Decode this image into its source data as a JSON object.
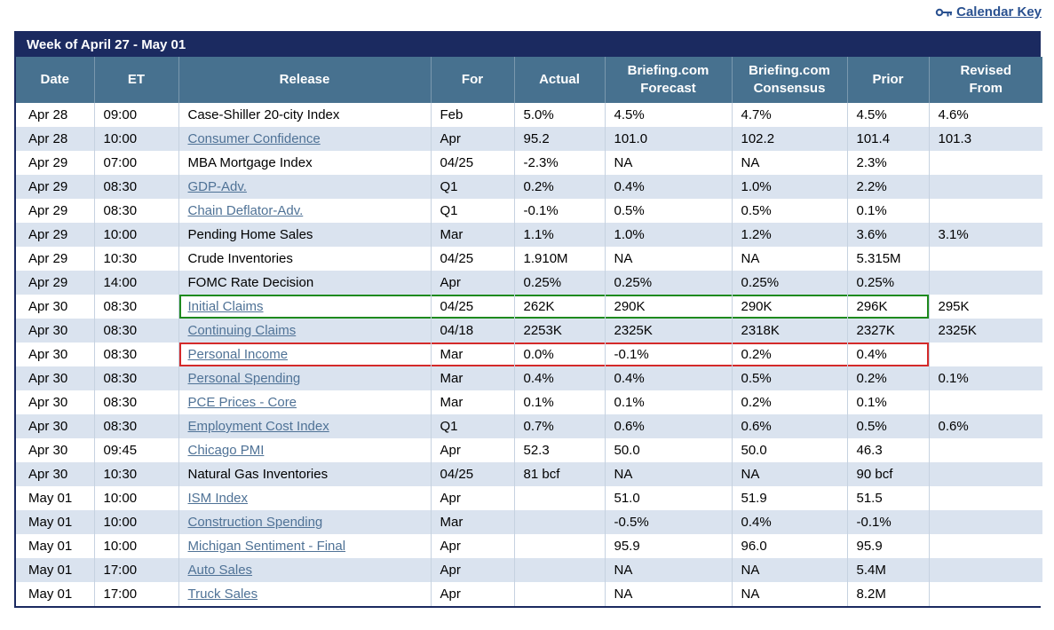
{
  "calendar_key": {
    "label": "Calendar Key"
  },
  "title": "Week of April 27 - May 01",
  "colors": {
    "navy": "#1b2a60",
    "header_blue": "#47718f",
    "zebra": "#dae3ef",
    "link": "#4f7296",
    "hl_green": "#1e8a1e",
    "hl_red": "#d42a2a"
  },
  "table": {
    "headers": [
      "Date",
      "ET",
      "Release",
      "For",
      "Actual",
      "Briefing.com\nForecast",
      "Briefing.com\nConsensus",
      "Prior",
      "Revised\nFrom"
    ],
    "rows": [
      {
        "date": "Apr 28",
        "et": "09:00",
        "release": "Case-Shiller 20-city Index",
        "link": false,
        "for": "Feb",
        "actual": "5.0%",
        "forecast": "4.5%",
        "consensus": "4.7%",
        "prior": "4.5%",
        "revised": "4.6%"
      },
      {
        "date": "Apr 28",
        "et": "10:00",
        "release": "Consumer Confidence",
        "link": true,
        "for": "Apr",
        "actual": "95.2",
        "forecast": "101.0",
        "consensus": "102.2",
        "prior": "101.4",
        "revised": "101.3"
      },
      {
        "date": "Apr 29",
        "et": "07:00",
        "release": "MBA Mortgage Index",
        "link": false,
        "for": "04/25",
        "actual": "-2.3%",
        "forecast": "NA",
        "consensus": "NA",
        "prior": "2.3%",
        "revised": ""
      },
      {
        "date": "Apr 29",
        "et": "08:30",
        "release": "GDP-Adv.",
        "link": true,
        "for": "Q1",
        "actual": "0.2%",
        "forecast": "0.4%",
        "consensus": "1.0%",
        "prior": "2.2%",
        "revised": ""
      },
      {
        "date": "Apr 29",
        "et": "08:30",
        "release": "Chain Deflator-Adv.",
        "link": true,
        "for": "Q1",
        "actual": "-0.1%",
        "forecast": "0.5%",
        "consensus": "0.5%",
        "prior": "0.1%",
        "revised": ""
      },
      {
        "date": "Apr 29",
        "et": "10:00",
        "release": "Pending Home Sales",
        "link": false,
        "for": "Mar",
        "actual": "1.1%",
        "forecast": "1.0%",
        "consensus": "1.2%",
        "prior": "3.6%",
        "revised": "3.1%"
      },
      {
        "date": "Apr 29",
        "et": "10:30",
        "release": "Crude Inventories",
        "link": false,
        "for": "04/25",
        "actual": "1.910M",
        "forecast": "NA",
        "consensus": "NA",
        "prior": "5.315M",
        "revised": ""
      },
      {
        "date": "Apr 29",
        "et": "14:00",
        "release": "FOMC Rate Decision",
        "link": false,
        "for": "Apr",
        "actual": "0.25%",
        "forecast": "0.25%",
        "consensus": "0.25%",
        "prior": "0.25%",
        "revised": ""
      },
      {
        "date": "Apr 30",
        "et": "08:30",
        "release": "Initial Claims",
        "link": true,
        "for": "04/25",
        "actual": "262K",
        "forecast": "290K",
        "consensus": "290K",
        "prior": "296K",
        "revised": "295K",
        "highlight": "green"
      },
      {
        "date": "Apr 30",
        "et": "08:30",
        "release": "Continuing Claims",
        "link": true,
        "for": "04/18",
        "actual": "2253K",
        "forecast": "2325K",
        "consensus": "2318K",
        "prior": "2327K",
        "revised": "2325K"
      },
      {
        "date": "Apr 30",
        "et": "08:30",
        "release": "Personal Income",
        "link": true,
        "for": "Mar",
        "actual": "0.0%",
        "forecast": "-0.1%",
        "consensus": "0.2%",
        "prior": "0.4%",
        "revised": "",
        "highlight": "red"
      },
      {
        "date": "Apr 30",
        "et": "08:30",
        "release": "Personal Spending",
        "link": true,
        "for": "Mar",
        "actual": "0.4%",
        "forecast": "0.4%",
        "consensus": "0.5%",
        "prior": "0.2%",
        "revised": "0.1%"
      },
      {
        "date": "Apr 30",
        "et": "08:30",
        "release": "PCE Prices - Core",
        "link": true,
        "for": "Mar",
        "actual": "0.1%",
        "forecast": "0.1%",
        "consensus": "0.2%",
        "prior": "0.1%",
        "revised": ""
      },
      {
        "date": "Apr 30",
        "et": "08:30",
        "release": "Employment Cost Index",
        "link": true,
        "for": "Q1",
        "actual": "0.7%",
        "forecast": "0.6%",
        "consensus": "0.6%",
        "prior": "0.5%",
        "revised": "0.6%"
      },
      {
        "date": "Apr 30",
        "et": "09:45",
        "release": "Chicago PMI",
        "link": true,
        "for": "Apr",
        "actual": "52.3",
        "forecast": "50.0",
        "consensus": "50.0",
        "prior": "46.3",
        "revised": ""
      },
      {
        "date": "Apr 30",
        "et": "10:30",
        "release": "Natural Gas Inventories",
        "link": false,
        "for": "04/25",
        "actual": "81 bcf",
        "forecast": "NA",
        "consensus": "NA",
        "prior": "90 bcf",
        "revised": ""
      },
      {
        "date": "May 01",
        "et": "10:00",
        "release": "ISM Index",
        "link": true,
        "for": "Apr",
        "actual": "",
        "forecast": "51.0",
        "consensus": "51.9",
        "prior": "51.5",
        "revised": ""
      },
      {
        "date": "May 01",
        "et": "10:00",
        "release": "Construction Spending",
        "link": true,
        "for": "Mar",
        "actual": "",
        "forecast": "-0.5%",
        "consensus": "0.4%",
        "prior": "-0.1%",
        "revised": ""
      },
      {
        "date": "May 01",
        "et": "10:00",
        "release": "Michigan Sentiment - Final",
        "link": true,
        "for": "Apr",
        "actual": "",
        "forecast": "95.9",
        "consensus": "96.0",
        "prior": "95.9",
        "revised": ""
      },
      {
        "date": "May 01",
        "et": "17:00",
        "release": "Auto Sales",
        "link": true,
        "for": "Apr",
        "actual": "",
        "forecast": "NA",
        "consensus": "NA",
        "prior": "5.4M",
        "revised": ""
      },
      {
        "date": "May 01",
        "et": "17:00",
        "release": "Truck Sales",
        "link": true,
        "for": "Apr",
        "actual": "",
        "forecast": "NA",
        "consensus": "NA",
        "prior": "8.2M",
        "revised": ""
      }
    ]
  }
}
